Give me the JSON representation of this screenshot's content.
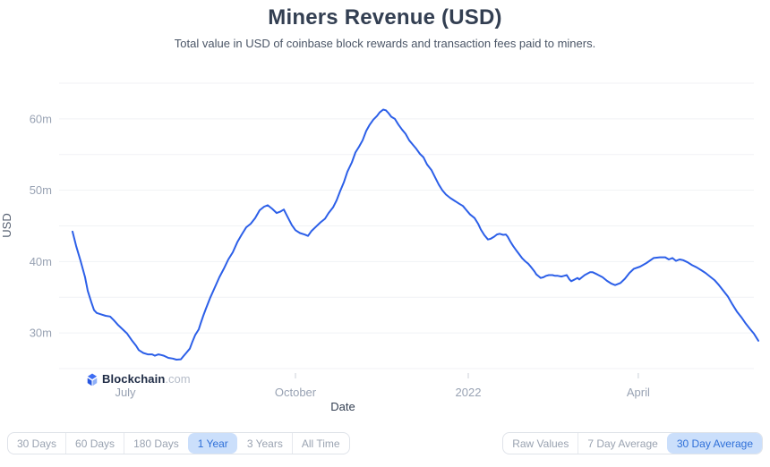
{
  "header": {
    "title": "Miners Revenue (USD)",
    "subtitle": "Total value in USD of coinbase block rewards and transaction fees paid to miners."
  },
  "watermark": {
    "brand": "Blockchain",
    "suffix": ".com"
  },
  "controls": {
    "range_buttons": [
      {
        "label": "30 Days",
        "selected": false
      },
      {
        "label": "60 Days",
        "selected": false
      },
      {
        "label": "180 Days",
        "selected": false
      },
      {
        "label": "1 Year",
        "selected": true
      },
      {
        "label": "3 Years",
        "selected": false
      },
      {
        "label": "All Time",
        "selected": false
      }
    ],
    "aggregation_buttons": [
      {
        "label": "Raw Values",
        "selected": false
      },
      {
        "label": "7 Day Average",
        "selected": false
      },
      {
        "label": "30 Day Average",
        "selected": true
      }
    ]
  },
  "colors": {
    "line": "#2c5fe8",
    "grid": "#f1f2f5",
    "tick_text": "#98a2b3",
    "axis_title": "#555f70",
    "x_label": "#333f52",
    "selected_bg": "#cbdffb",
    "selected_text": "#2e6fd8",
    "title_text": "#333f52"
  },
  "chart_data": {
    "type": "line",
    "title": "Miners Revenue (USD)",
    "subtitle": "Total value in USD of coinbase block rewards and transaction fees paid to miners.",
    "xlabel": "Date",
    "ylabel": "USD",
    "unit": "million USD per day (30 day average)",
    "ylim": [
      25,
      65
    ],
    "grid": true,
    "legend": "none",
    "y_gridlines": [
      65,
      60,
      55,
      50,
      45,
      40,
      35,
      30,
      25
    ],
    "y_ticks": [
      {
        "label": "60m",
        "value": 60
      },
      {
        "label": "50m",
        "value": 50
      },
      {
        "label": "40m",
        "value": 40
      },
      {
        "label": "30m",
        "value": 30
      }
    ],
    "x_ticks": [
      {
        "label": "July",
        "t": 0.077
      },
      {
        "label": "October",
        "t": 0.325
      },
      {
        "label": "2022",
        "t": 0.577
      },
      {
        "label": "April",
        "t": 0.825
      }
    ],
    "series": [
      {
        "name": "Miners Revenue (USD)",
        "x_format": "fraction of x-axis (June 2021 to June 2022)",
        "y_format": "million USD",
        "points": [
          [
            0.0,
            44.2
          ],
          [
            0.0052,
            42.2
          ],
          [
            0.0117,
            40.1
          ],
          [
            0.0183,
            37.8
          ],
          [
            0.0222,
            35.9
          ],
          [
            0.0274,
            34.3
          ],
          [
            0.0313,
            33.2
          ],
          [
            0.0352,
            32.8
          ],
          [
            0.0418,
            32.6
          ],
          [
            0.0483,
            32.4
          ],
          [
            0.0548,
            32.3
          ],
          [
            0.06,
            31.8
          ],
          [
            0.0666,
            31.1
          ],
          [
            0.0731,
            30.5
          ],
          [
            0.0796,
            29.9
          ],
          [
            0.0862,
            29.0
          ],
          [
            0.0927,
            28.2
          ],
          [
            0.0966,
            27.6
          ],
          [
            0.1031,
            27.2
          ],
          [
            0.1097,
            27.0
          ],
          [
            0.1162,
            27.0
          ],
          [
            0.1201,
            26.8
          ],
          [
            0.1253,
            27.0
          ],
          [
            0.1292,
            26.9
          ],
          [
            0.1332,
            26.8
          ],
          [
            0.1397,
            26.5
          ],
          [
            0.1462,
            26.4
          ],
          [
            0.1514,
            26.25
          ],
          [
            0.158,
            26.3
          ],
          [
            0.1619,
            26.75
          ],
          [
            0.1658,
            27.2
          ],
          [
            0.171,
            27.8
          ],
          [
            0.1749,
            28.8
          ],
          [
            0.1788,
            29.7
          ],
          [
            0.1841,
            30.5
          ],
          [
            0.1867,
            31.3
          ],
          [
            0.1906,
            32.4
          ],
          [
            0.1945,
            33.4
          ],
          [
            0.2011,
            35.0
          ],
          [
            0.2076,
            36.4
          ],
          [
            0.2141,
            37.8
          ],
          [
            0.2206,
            39.0
          ],
          [
            0.2272,
            40.3
          ],
          [
            0.2337,
            41.3
          ],
          [
            0.2402,
            42.7
          ],
          [
            0.2467,
            43.8
          ],
          [
            0.2533,
            44.8
          ],
          [
            0.2598,
            45.3
          ],
          [
            0.2663,
            46.1
          ],
          [
            0.2728,
            47.2
          ],
          [
            0.2794,
            47.7
          ],
          [
            0.2846,
            47.9
          ],
          [
            0.2911,
            47.4
          ],
          [
            0.2977,
            46.8
          ],
          [
            0.3029,
            47.0
          ],
          [
            0.3081,
            47.3
          ],
          [
            0.3133,
            46.3
          ],
          [
            0.3199,
            45.1
          ],
          [
            0.3251,
            44.4
          ],
          [
            0.3316,
            44.0
          ],
          [
            0.3381,
            43.8
          ],
          [
            0.3433,
            43.6
          ],
          [
            0.3486,
            44.3
          ],
          [
            0.3551,
            44.9
          ],
          [
            0.3616,
            45.5
          ],
          [
            0.3681,
            46.0
          ],
          [
            0.3734,
            46.8
          ],
          [
            0.3799,
            47.6
          ],
          [
            0.3851,
            48.6
          ],
          [
            0.3903,
            49.9
          ],
          [
            0.3955,
            51.1
          ],
          [
            0.4008,
            52.6
          ],
          [
            0.4073,
            53.9
          ],
          [
            0.4125,
            55.3
          ],
          [
            0.4178,
            56.1
          ],
          [
            0.423,
            57.0
          ],
          [
            0.4282,
            58.3
          ],
          [
            0.4334,
            59.2
          ],
          [
            0.4386,
            59.9
          ],
          [
            0.4439,
            60.4
          ],
          [
            0.4478,
            60.9
          ],
          [
            0.453,
            61.3
          ],
          [
            0.4569,
            61.2
          ],
          [
            0.4608,
            60.8
          ],
          [
            0.4648,
            60.3
          ],
          [
            0.47,
            60.0
          ],
          [
            0.4752,
            59.2
          ],
          [
            0.4804,
            58.5
          ],
          [
            0.4856,
            57.9
          ],
          [
            0.4909,
            57.0
          ],
          [
            0.4961,
            56.4
          ],
          [
            0.5013,
            55.8
          ],
          [
            0.5065,
            55.1
          ],
          [
            0.5117,
            54.6
          ],
          [
            0.517,
            53.6
          ],
          [
            0.5235,
            52.8
          ],
          [
            0.5287,
            51.8
          ],
          [
            0.5339,
            50.8
          ],
          [
            0.5392,
            50.0
          ],
          [
            0.5444,
            49.4
          ],
          [
            0.5509,
            48.9
          ],
          [
            0.5574,
            48.5
          ],
          [
            0.564,
            48.1
          ],
          [
            0.5692,
            47.8
          ],
          [
            0.5744,
            47.2
          ],
          [
            0.5796,
            46.6
          ],
          [
            0.5862,
            46.1
          ],
          [
            0.5914,
            45.3
          ],
          [
            0.5953,
            44.5
          ],
          [
            0.6005,
            43.7
          ],
          [
            0.6057,
            43.1
          ],
          [
            0.6096,
            43.2
          ],
          [
            0.6149,
            43.5
          ],
          [
            0.6188,
            43.8
          ],
          [
            0.6227,
            43.9
          ],
          [
            0.6279,
            43.75
          ],
          [
            0.6318,
            43.8
          ],
          [
            0.6345,
            43.5
          ],
          [
            0.6384,
            42.8
          ],
          [
            0.6423,
            42.2
          ],
          [
            0.6475,
            41.5
          ],
          [
            0.6514,
            41.0
          ],
          [
            0.6553,
            40.5
          ],
          [
            0.6606,
            40.0
          ],
          [
            0.6645,
            39.7
          ],
          [
            0.6684,
            39.25
          ],
          [
            0.6736,
            38.6
          ],
          [
            0.6762,
            38.2
          ],
          [
            0.6801,
            37.9
          ],
          [
            0.6827,
            37.7
          ],
          [
            0.6867,
            37.8
          ],
          [
            0.6906,
            38.0
          ],
          [
            0.6945,
            38.1
          ],
          [
            0.6997,
            38.1
          ],
          [
            0.7037,
            38.0
          ],
          [
            0.7076,
            38.0
          ],
          [
            0.7128,
            37.9
          ],
          [
            0.7167,
            38.0
          ],
          [
            0.7206,
            38.1
          ],
          [
            0.7245,
            37.5
          ],
          [
            0.7272,
            37.25
          ],
          [
            0.7324,
            37.5
          ],
          [
            0.7363,
            37.7
          ],
          [
            0.7389,
            37.5
          ],
          [
            0.7428,
            37.8
          ],
          [
            0.7467,
            38.1
          ],
          [
            0.7507,
            38.3
          ],
          [
            0.7546,
            38.5
          ],
          [
            0.7585,
            38.5
          ],
          [
            0.765,
            38.2
          ],
          [
            0.7728,
            37.8
          ],
          [
            0.7793,
            37.3
          ],
          [
            0.7859,
            36.9
          ],
          [
            0.7911,
            36.7
          ],
          [
            0.7989,
            37.0
          ],
          [
            0.8055,
            37.6
          ],
          [
            0.812,
            38.4
          ],
          [
            0.8185,
            39.0
          ],
          [
            0.8277,
            39.3
          ],
          [
            0.8368,
            39.8
          ],
          [
            0.8473,
            40.5
          ],
          [
            0.8564,
            40.6
          ],
          [
            0.8642,
            40.6
          ],
          [
            0.8695,
            40.3
          ],
          [
            0.8747,
            40.5
          ],
          [
            0.8799,
            40.1
          ],
          [
            0.8851,
            40.3
          ],
          [
            0.8903,
            40.2
          ],
          [
            0.8969,
            39.9
          ],
          [
            0.9034,
            39.5
          ],
          [
            0.9099,
            39.2
          ],
          [
            0.9164,
            38.8
          ],
          [
            0.923,
            38.4
          ],
          [
            0.9295,
            37.9
          ],
          [
            0.936,
            37.4
          ],
          [
            0.9426,
            36.7
          ],
          [
            0.9491,
            35.9
          ],
          [
            0.9556,
            35.1
          ],
          [
            0.9621,
            34.0
          ],
          [
            0.9687,
            33.0
          ],
          [
            0.9752,
            32.2
          ],
          [
            0.9817,
            31.3
          ],
          [
            0.9883,
            30.5
          ],
          [
            0.9935,
            29.9
          ],
          [
            0.9974,
            29.3
          ],
          [
            1.0,
            28.9
          ]
        ]
      }
    ]
  }
}
